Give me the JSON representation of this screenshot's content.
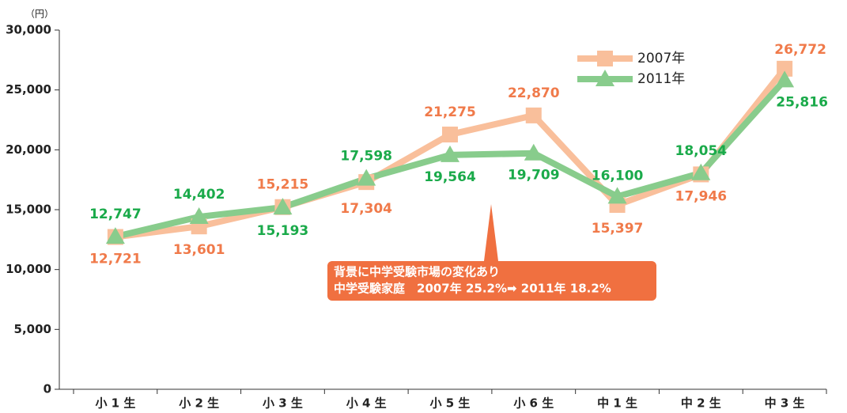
{
  "chart_data": {
    "type": "line",
    "y_unit": "（円）",
    "categories": [
      "小 1 生",
      "小 2 生",
      "小 3 生",
      "小 4 生",
      "小 5 生",
      "小 6 生",
      "中 1 生",
      "中 2 生",
      "中 3 生"
    ],
    "series": [
      {
        "name": "2007年",
        "color": "#f9bf9b",
        "label_color": "#f07a4a",
        "marker": "square",
        "values": [
          12721,
          13601,
          15215,
          17304,
          21275,
          22870,
          15397,
          17946,
          26772
        ],
        "value_labels": [
          "12,721",
          "13,601",
          "15,215",
          "17,304",
          "21,275",
          "22,870",
          "15,397",
          "17,946",
          "26,772"
        ]
      },
      {
        "name": "2011年",
        "color": "#88cc8c",
        "label_color": "#1aaa4a",
        "marker": "triangle",
        "values": [
          12747,
          14402,
          15193,
          17598,
          19564,
          19709,
          16100,
          18054,
          25816
        ],
        "value_labels": [
          "12,747",
          "14,402",
          "15,193",
          "17,598",
          "19,564",
          "19,709",
          "16,100",
          "18,054",
          "25,816"
        ]
      }
    ],
    "ylim": [
      0,
      30000
    ],
    "yticks": [
      0,
      {
        "value": 5000,
        "label": "5,000"
      },
      {
        "value": 10000,
        "label": "10,000"
      },
      {
        "value": 15000,
        "label": "15,000"
      },
      {
        "value": 20000,
        "label": "20,000"
      },
      {
        "value": 25000,
        "label": "25,000"
      },
      {
        "value": 30000,
        "label": "30,000"
      }
    ],
    "annotation": [
      "背景に中学受験市場の変化あり",
      "中学受験家庭　2007年 25.2%➡ 2011年 18.2%"
    ],
    "annotation_color": "#f07040",
    "legend": "upper right"
  }
}
